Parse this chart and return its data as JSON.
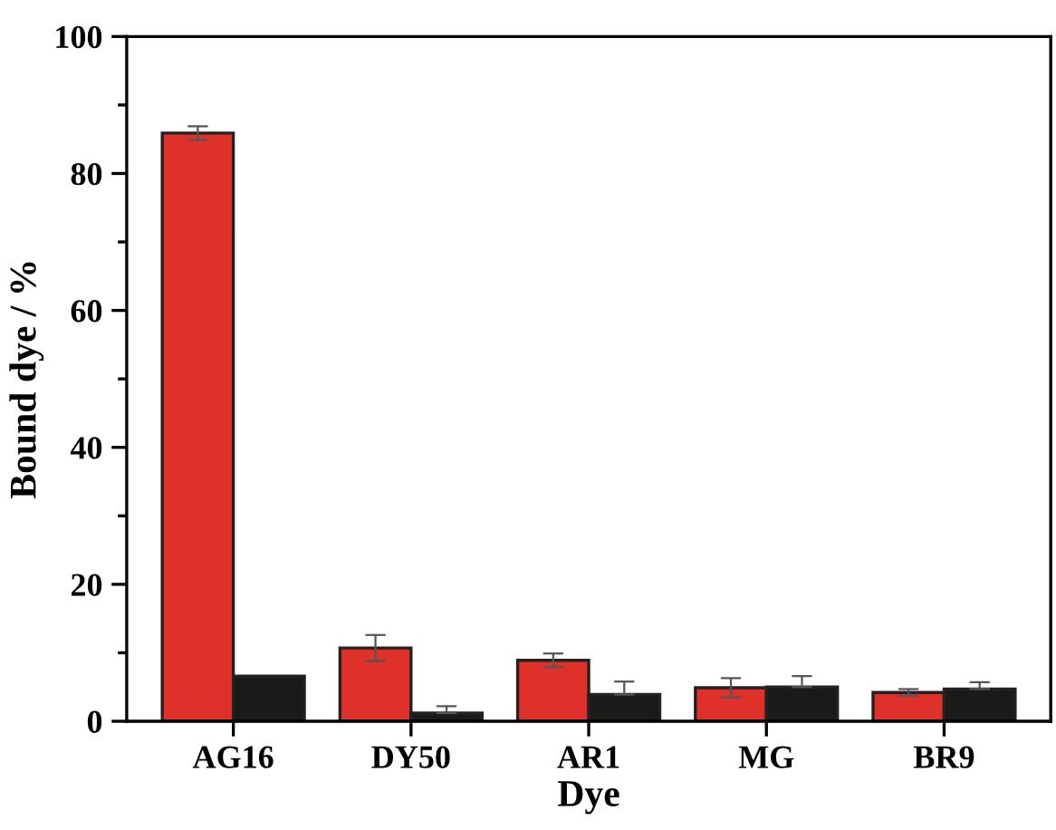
{
  "chart_data": {
    "type": "bar",
    "xlabel": "Dye",
    "ylabel": "Bound dye / %",
    "categories": [
      "AG16",
      "DY50",
      "AR1",
      "MG",
      "BR9"
    ],
    "series": [
      {
        "color": "#e0302a",
        "values": [
          85.9,
          10.7,
          8.9,
          4.9,
          4.2
        ],
        "errors": [
          1.0,
          1.9,
          1.0,
          1.4,
          0.5
        ]
      },
      {
        "color": "#1a1a18",
        "values": [
          6.6,
          1.2,
          3.9,
          5.0,
          4.7
        ],
        "errors": [
          null,
          [
            1.2,
            2.2
          ],
          [
            3.9,
            5.8
          ],
          [
            5.0,
            6.6
          ],
          [
            4.7,
            5.7
          ]
        ]
      }
    ],
    "ylim": [
      0,
      100
    ],
    "yticks": [
      0,
      {
        "value": 10,
        "label": null
      },
      20,
      {
        "value": 30,
        "label": null
      },
      40,
      {
        "value": 50,
        "label": null
      },
      60,
      {
        "value": 70,
        "label": null
      },
      80,
      {
        "value": 90,
        "label": null
      },
      100
    ],
    "grid": false,
    "legend": false
  }
}
